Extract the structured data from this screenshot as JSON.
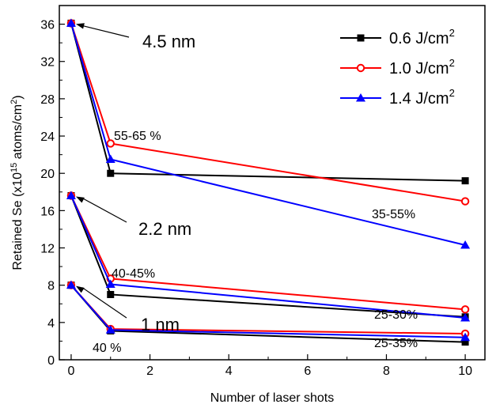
{
  "chart_data": {
    "type": "line",
    "xlabel": "Number of laser shots",
    "ylabel": "Retained Se (x10^15 atoms/cm^2)",
    "ylabel_parts": {
      "pre": "Retained Se (x10",
      "sup1": "15",
      "mid": " atoms/cm",
      "sup2": "2",
      "post": ")"
    },
    "xlim": [
      -0.3,
      10.5
    ],
    "ylim": [
      0,
      38
    ],
    "xticks": [
      0,
      2,
      4,
      6,
      8,
      10
    ],
    "yticks": [
      0,
      4,
      8,
      12,
      16,
      20,
      24,
      28,
      32,
      36
    ],
    "x": [
      0,
      1,
      10
    ],
    "groups": [
      {
        "label": "4.5 nm",
        "series": [
          {
            "series_index": 0,
            "values": [
              36.1,
              20.0,
              19.2
            ]
          },
          {
            "series_index": 1,
            "values": [
              36.1,
              23.2,
              17.0
            ]
          },
          {
            "series_index": 2,
            "values": [
              36.1,
              21.5,
              12.3
            ]
          }
        ]
      },
      {
        "label": "2.2 nm",
        "series": [
          {
            "series_index": 0,
            "values": [
              17.6,
              7.0,
              4.6
            ]
          },
          {
            "series_index": 1,
            "values": [
              17.6,
              8.7,
              5.4
            ]
          },
          {
            "series_index": 2,
            "values": [
              17.6,
              8.1,
              4.5
            ]
          }
        ]
      },
      {
        "label": "1 nm",
        "series": [
          {
            "series_index": 0,
            "values": [
              8.0,
              3.1,
              1.9
            ]
          },
          {
            "series_index": 1,
            "values": [
              8.0,
              3.3,
              2.8
            ]
          },
          {
            "series_index": 2,
            "values": [
              8.0,
              3.2,
              2.4
            ]
          }
        ]
      }
    ],
    "series": [
      {
        "name": "0.6 J/cm",
        "sup": "2",
        "color": "#000000",
        "marker": "square-filled"
      },
      {
        "name": "1.0 J/cm",
        "sup": "2",
        "color": "#ff0000",
        "marker": "circle-open"
      },
      {
        "name": "1.4 J/cm",
        "sup": "2",
        "color": "#0000ff",
        "marker": "triangle-filled"
      }
    ],
    "legend_position": "top-right",
    "annotations": [
      {
        "text": "55-65 %"
      },
      {
        "text": "35-55%"
      },
      {
        "text": "40-45%"
      },
      {
        "text": "25-30%"
      },
      {
        "text": "40 %"
      },
      {
        "text": "25-35%"
      }
    ],
    "grid": false
  }
}
